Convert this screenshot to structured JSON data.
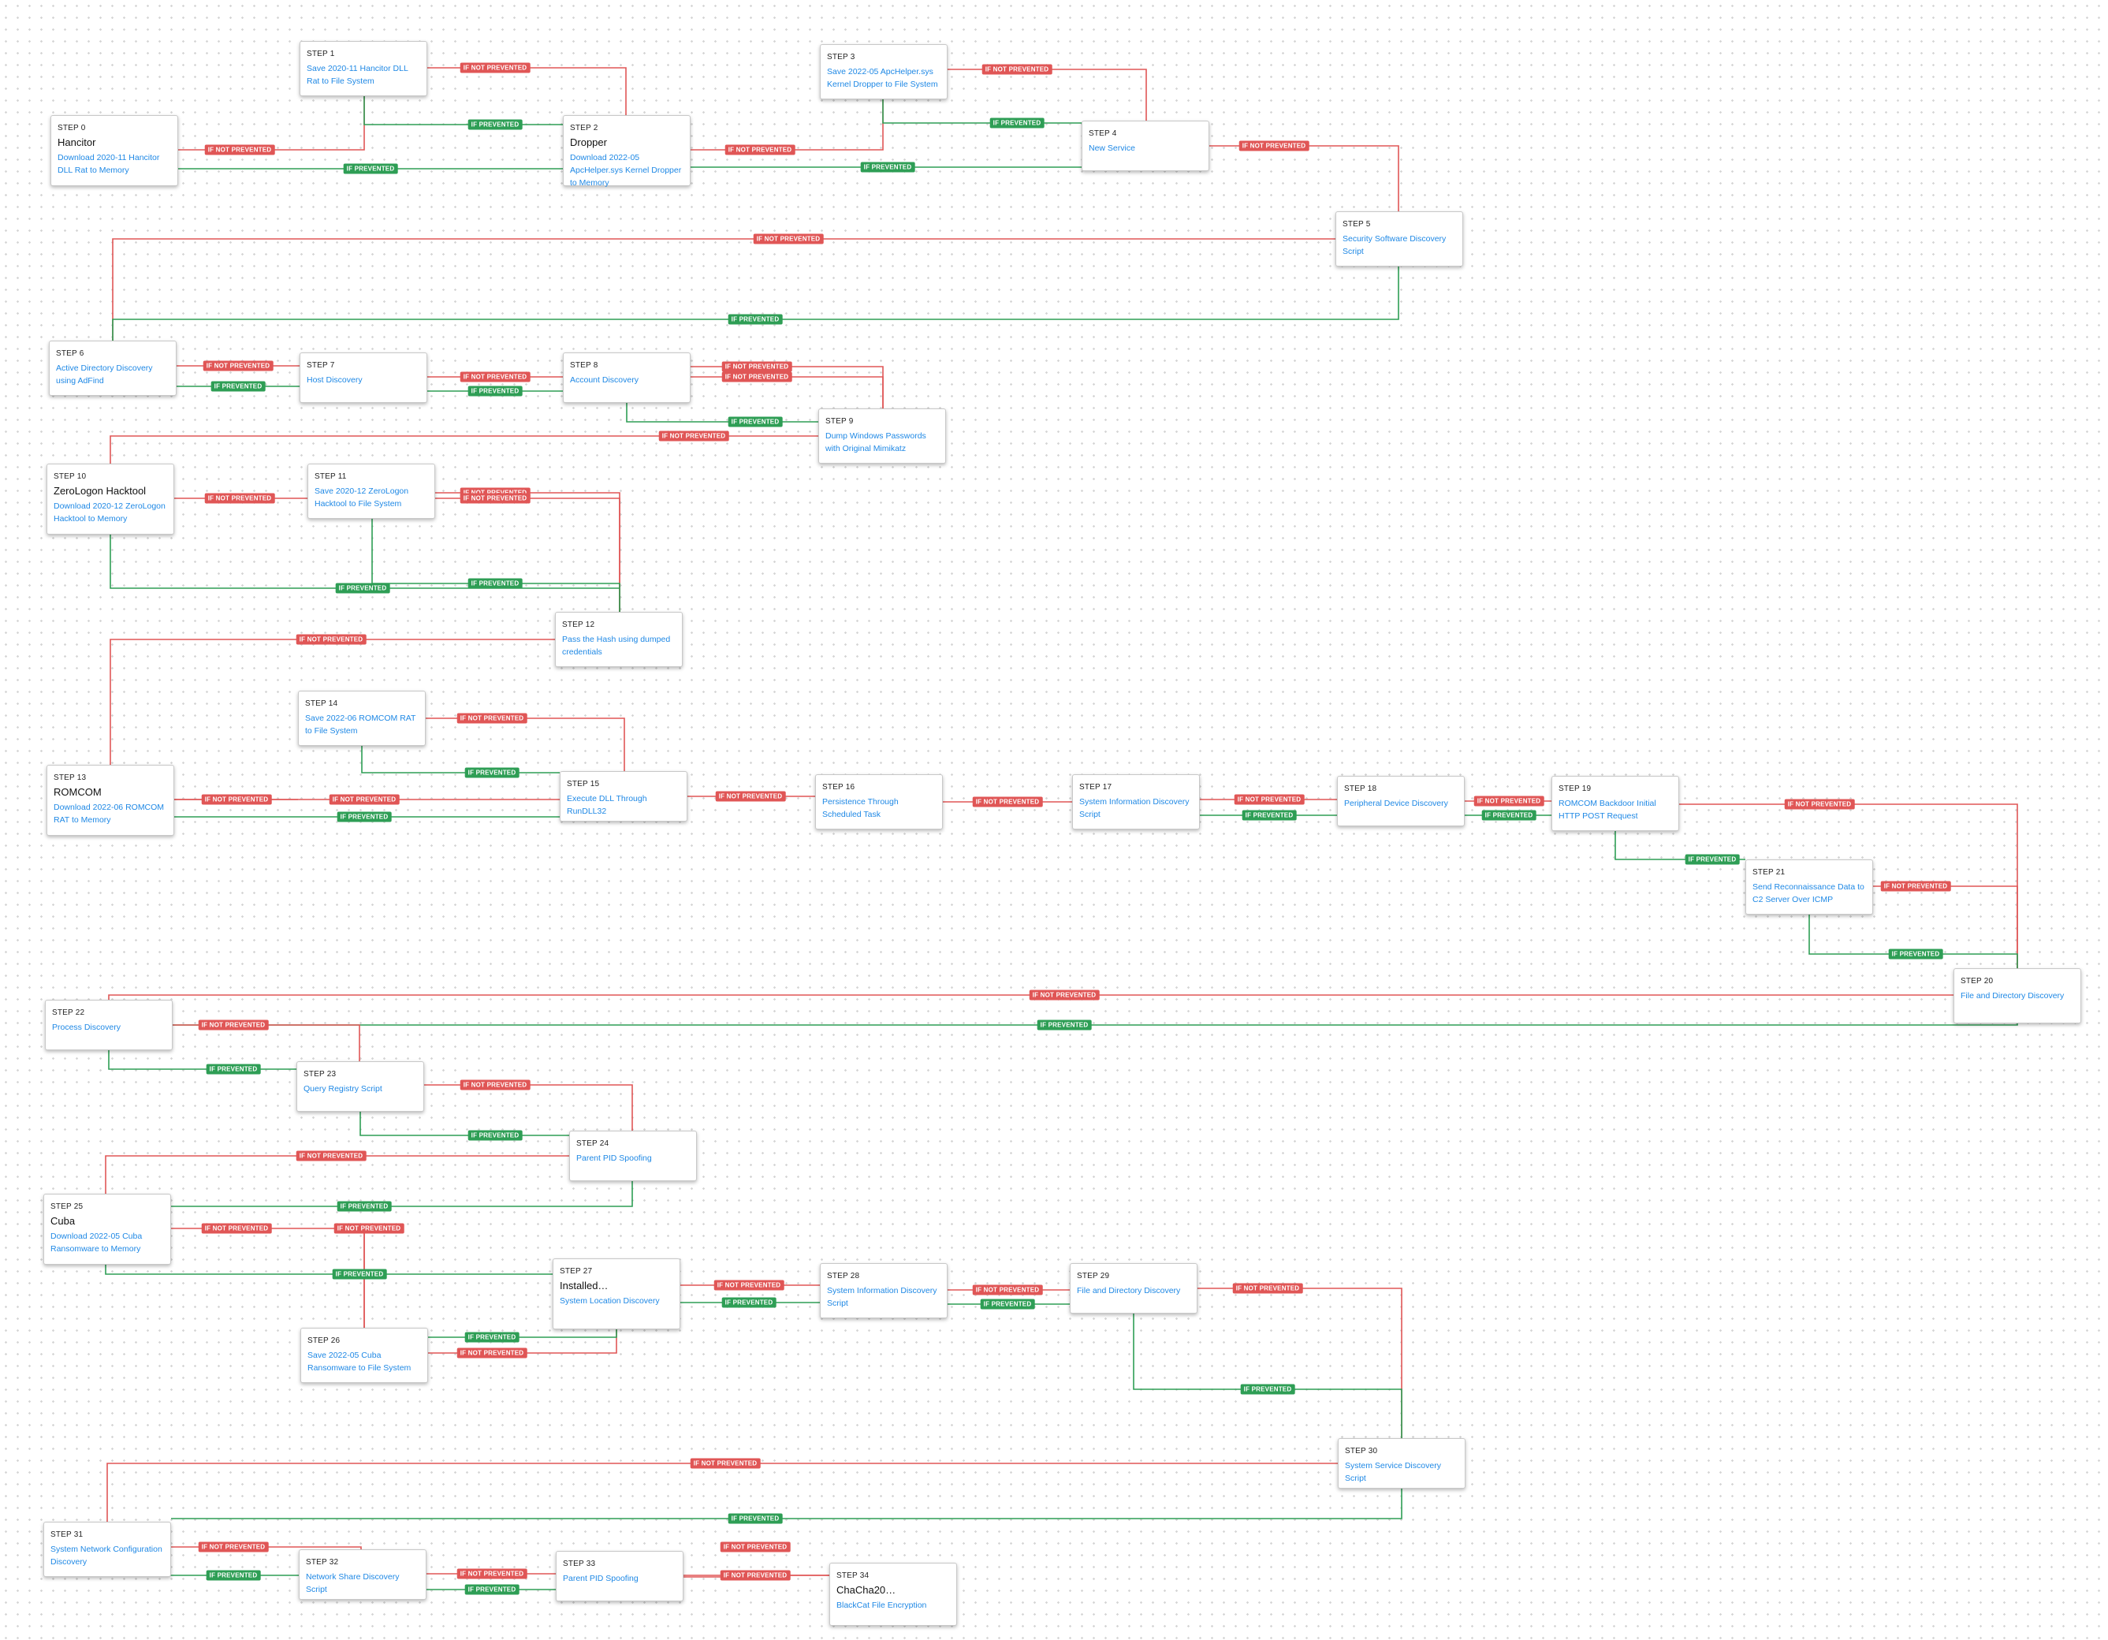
{
  "labels": {
    "not_prevented": "IF NOT PREVENTED",
    "prevented": "IF PREVENTED"
  },
  "colors": {
    "not_prevented": "#e05656",
    "prevented": "#2e9e55",
    "link": "#1e88e5"
  },
  "nodes": [
    {
      "id": "s0",
      "step": "STEP 0",
      "title": "Hancitor",
      "desc": "Download 2020-11 Hancitor DLL Rat to Memory"
    },
    {
      "id": "s1",
      "step": "STEP 1",
      "title": "",
      "desc": "Save 2020-11 Hancitor DLL Rat to File System"
    },
    {
      "id": "s2",
      "step": "STEP 2",
      "title": "Dropper",
      "desc": "Download 2022-05 ApcHelper.sys Kernel Dropper to Memory"
    },
    {
      "id": "s3",
      "step": "STEP 3",
      "title": "",
      "desc": "Save 2022-05 ApcHelper.sys Kernel Dropper to File System"
    },
    {
      "id": "s4",
      "step": "STEP 4",
      "title": "",
      "desc": "New Service"
    },
    {
      "id": "s5",
      "step": "STEP 5",
      "title": "",
      "desc": "Security Software Discovery Script"
    },
    {
      "id": "s6",
      "step": "STEP 6",
      "title": "",
      "desc": "Active Directory Discovery using AdFind"
    },
    {
      "id": "s7",
      "step": "STEP 7",
      "title": "",
      "desc": "Host Discovery"
    },
    {
      "id": "s8",
      "step": "STEP 8",
      "title": "",
      "desc": "Account Discovery"
    },
    {
      "id": "s9",
      "step": "STEP 9",
      "title": "",
      "desc": "Dump Windows Passwords with Original Mimikatz"
    },
    {
      "id": "s10",
      "step": "STEP 10",
      "title": "ZeroLogon Hacktool",
      "desc": "Download 2020-12 ZeroLogon Hacktool to Memory"
    },
    {
      "id": "s11",
      "step": "STEP 11",
      "title": "",
      "desc": "Save 2020-12 ZeroLogon Hacktool to File System"
    },
    {
      "id": "s12",
      "step": "STEP 12",
      "title": "",
      "desc": "Pass the Hash using dumped credentials"
    },
    {
      "id": "s13",
      "step": "STEP 13",
      "title": "ROMCOM",
      "desc": "Download 2022-06 ROMCOM RAT to Memory"
    },
    {
      "id": "s14",
      "step": "STEP 14",
      "title": "",
      "desc": "Save 2022-06 ROMCOM RAT to File System"
    },
    {
      "id": "s15",
      "step": "STEP 15",
      "title": "",
      "desc": "Execute DLL Through RunDLL32"
    },
    {
      "id": "s16",
      "step": "STEP 16",
      "title": "",
      "desc": "Persistence Through Scheduled Task"
    },
    {
      "id": "s17",
      "step": "STEP 17",
      "title": "",
      "desc": "System Information Discovery Script"
    },
    {
      "id": "s18",
      "step": "STEP 18",
      "title": "",
      "desc": "Peripheral Device Discovery"
    },
    {
      "id": "s19",
      "step": "STEP 19",
      "title": "",
      "desc": "ROMCOM Backdoor Initial HTTP POST Request"
    },
    {
      "id": "s20",
      "step": "STEP 20",
      "title": "",
      "desc": "File and Directory Discovery"
    },
    {
      "id": "s21",
      "step": "STEP 21",
      "title": "",
      "desc": "Send Reconnaissance Data to C2 Server Over ICMP"
    },
    {
      "id": "s22",
      "step": "STEP 22",
      "title": "",
      "desc": "Process Discovery"
    },
    {
      "id": "s23",
      "step": "STEP 23",
      "title": "",
      "desc": "Query Registry Script"
    },
    {
      "id": "s24",
      "step": "STEP 24",
      "title": "",
      "desc": "Parent PID Spoofing"
    },
    {
      "id": "s25",
      "step": "STEP 25",
      "title": "Cuba",
      "desc": "Download 2022-05 Cuba Ransomware to Memory"
    },
    {
      "id": "s26",
      "step": "STEP 26",
      "title": "",
      "desc": "Save 2022-05 Cuba Ransomware to File System"
    },
    {
      "id": "s27",
      "step": "STEP 27",
      "title": "Installed…",
      "desc": "System Location Discovery"
    },
    {
      "id": "s28",
      "step": "STEP 28",
      "title": "",
      "desc": "System Information Discovery Script"
    },
    {
      "id": "s29",
      "step": "STEP 29",
      "title": "",
      "desc": "File and Directory Discovery"
    },
    {
      "id": "s30",
      "step": "STEP 30",
      "title": "",
      "desc": "System Service Discovery Script"
    },
    {
      "id": "s31",
      "step": "STEP 31",
      "title": "",
      "desc": "System Network Configuration Discovery"
    },
    {
      "id": "s32",
      "step": "STEP 32",
      "title": "",
      "desc": "Network Share Discovery Script"
    },
    {
      "id": "s33",
      "step": "STEP 33",
      "title": "",
      "desc": "Parent PID Spoofing"
    },
    {
      "id": "s34",
      "step": "STEP 34",
      "title": "ChaCha20…",
      "desc": "BlackCat File Encryption"
    }
  ],
  "edges": [
    {
      "from": "s0",
      "to": "s1",
      "kind": "not_prevented"
    },
    {
      "from": "s0",
      "to": "s2",
      "kind": "prevented"
    },
    {
      "from": "s1",
      "to": "s2",
      "kind": "not_prevented"
    },
    {
      "from": "s1",
      "to": "s2",
      "kind": "prevented"
    },
    {
      "from": "s2",
      "to": "s3",
      "kind": "not_prevented"
    },
    {
      "from": "s2",
      "to": "s4",
      "kind": "prevented"
    },
    {
      "from": "s3",
      "to": "s4",
      "kind": "not_prevented"
    },
    {
      "from": "s3",
      "to": "s4",
      "kind": "prevented"
    },
    {
      "from": "s4",
      "to": "s5",
      "kind": "not_prevented"
    },
    {
      "from": "s5",
      "to": "s6",
      "kind": "not_prevented"
    },
    {
      "from": "s5",
      "to": "s6",
      "kind": "prevented"
    },
    {
      "from": "s6",
      "to": "s7",
      "kind": "not_prevented"
    },
    {
      "from": "s6",
      "to": "s7",
      "kind": "prevented"
    },
    {
      "from": "s7",
      "to": "s8",
      "kind": "not_prevented"
    },
    {
      "from": "s7",
      "to": "s8",
      "kind": "prevented"
    },
    {
      "from": "s8",
      "to": "s9",
      "kind": "not_prevented"
    },
    {
      "from": "s8",
      "to": "s9",
      "kind": "not_prevented"
    },
    {
      "from": "s8",
      "to": "s9",
      "kind": "prevented"
    },
    {
      "from": "s9",
      "to": "s10",
      "kind": "not_prevented"
    },
    {
      "from": "s10",
      "to": "s11",
      "kind": "not_prevented"
    },
    {
      "from": "s10",
      "to": "s12",
      "kind": "prevented"
    },
    {
      "from": "s11",
      "to": "s12",
      "kind": "not_prevented"
    },
    {
      "from": "s11",
      "to": "s12",
      "kind": "not_prevented"
    },
    {
      "from": "s11",
      "to": "s12",
      "kind": "prevented"
    },
    {
      "from": "s12",
      "to": "s13",
      "kind": "not_prevented"
    },
    {
      "from": "s13",
      "to": "s14",
      "kind": "not_prevented"
    },
    {
      "from": "s13",
      "to": "s15",
      "kind": "not_prevented"
    },
    {
      "from": "s13",
      "to": "s15",
      "kind": "prevented"
    },
    {
      "from": "s14",
      "to": "s15",
      "kind": "not_prevented"
    },
    {
      "from": "s14",
      "to": "s15",
      "kind": "prevented"
    },
    {
      "from": "s15",
      "to": "s16",
      "kind": "not_prevented"
    },
    {
      "from": "s16",
      "to": "s17",
      "kind": "not_prevented"
    },
    {
      "from": "s17",
      "to": "s18",
      "kind": "not_prevented"
    },
    {
      "from": "s17",
      "to": "s18",
      "kind": "prevented"
    },
    {
      "from": "s18",
      "to": "s19",
      "kind": "not_prevented"
    },
    {
      "from": "s18",
      "to": "s19",
      "kind": "prevented"
    },
    {
      "from": "s19",
      "to": "s20",
      "kind": "not_prevented"
    },
    {
      "from": "s19",
      "to": "s21",
      "kind": "prevented"
    },
    {
      "from": "s21",
      "to": "s20",
      "kind": "not_prevented"
    },
    {
      "from": "s21",
      "to": "s20",
      "kind": "prevented"
    },
    {
      "from": "s20",
      "to": "s22",
      "kind": "not_prevented"
    },
    {
      "from": "s20",
      "to": "s22",
      "kind": "prevented"
    },
    {
      "from": "s22",
      "to": "s23",
      "kind": "not_prevented"
    },
    {
      "from": "s22",
      "to": "s23",
      "kind": "prevented"
    },
    {
      "from": "s23",
      "to": "s24",
      "kind": "not_prevented"
    },
    {
      "from": "s23",
      "to": "s24",
      "kind": "prevented"
    },
    {
      "from": "s24",
      "to": "s25",
      "kind": "not_prevented"
    },
    {
      "from": "s24",
      "to": "s25",
      "kind": "prevented"
    },
    {
      "from": "s25",
      "to": "s26",
      "kind": "not_prevented"
    },
    {
      "from": "s25",
      "to": "s26",
      "kind": "not_prevented"
    },
    {
      "from": "s25",
      "to": "s27",
      "kind": "prevented"
    },
    {
      "from": "s26",
      "to": "s27",
      "kind": "not_prevented"
    },
    {
      "from": "s26",
      "to": "s27",
      "kind": "prevented"
    },
    {
      "from": "s27",
      "to": "s28",
      "kind": "not_prevented"
    },
    {
      "from": "s27",
      "to": "s28",
      "kind": "prevented"
    },
    {
      "from": "s28",
      "to": "s29",
      "kind": "not_prevented"
    },
    {
      "from": "s28",
      "to": "s29",
      "kind": "prevented"
    },
    {
      "from": "s29",
      "to": "s30",
      "kind": "not_prevented"
    },
    {
      "from": "s29",
      "to": "s30",
      "kind": "prevented"
    },
    {
      "from": "s30",
      "to": "s31",
      "kind": "not_prevented"
    },
    {
      "from": "s30",
      "to": "s31",
      "kind": "prevented"
    },
    {
      "from": "s31",
      "to": "s32",
      "kind": "not_prevented"
    },
    {
      "from": "s31",
      "to": "s32",
      "kind": "prevented"
    },
    {
      "from": "s32",
      "to": "s33",
      "kind": "not_prevented"
    },
    {
      "from": "s32",
      "to": "s33",
      "kind": "prevented"
    },
    {
      "from": "s33",
      "to": "s34",
      "kind": "not_prevented"
    },
    {
      "from": "s33",
      "to": "s34",
      "kind": "not_prevented"
    }
  ]
}
